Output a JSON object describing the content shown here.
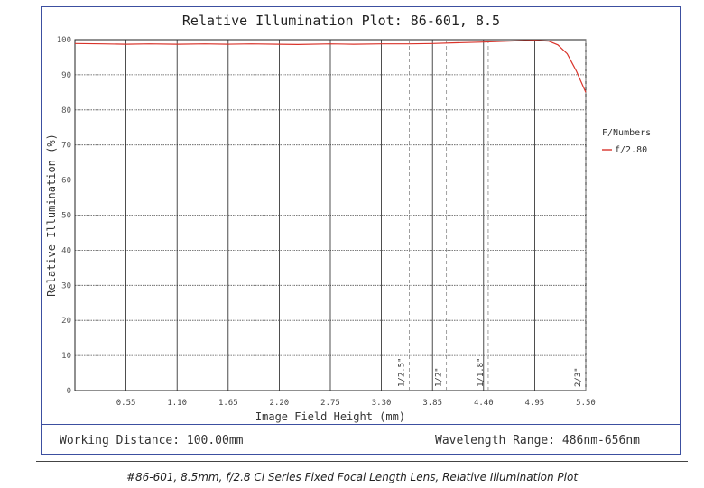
{
  "chart_data": {
    "type": "line",
    "title": "Relative Illumination Plot: 86-601, 8.5",
    "xlabel": "Image Field Height (mm)",
    "ylabel": "Relative Illumination (%)",
    "xlim": [
      0,
      5.5
    ],
    "ylim": [
      0,
      100
    ],
    "x_ticks": [
      "0.55",
      "1.10",
      "1.65",
      "2.20",
      "2.75",
      "3.30",
      "3.85",
      "4.40",
      "4.95",
      "5.50"
    ],
    "y_ticks": [
      "0",
      "10",
      "20",
      "30",
      "40",
      "50",
      "60",
      "70",
      "80",
      "90",
      "100"
    ],
    "grid": true,
    "legend": {
      "title": "F/Numbers",
      "placement": "right"
    },
    "series": [
      {
        "name": "f/2.80",
        "color": "#d9342b",
        "x": [
          0,
          0.3,
          0.55,
          0.8,
          1.1,
          1.4,
          1.65,
          1.9,
          2.2,
          2.4,
          2.75,
          3.0,
          3.3,
          3.6,
          3.85,
          4.1,
          4.4,
          4.6,
          4.8,
          4.95,
          5.1,
          5.2,
          5.3,
          5.4,
          5.5
        ],
        "y": [
          98.9,
          98.8,
          98.7,
          98.8,
          98.7,
          98.8,
          98.7,
          98.8,
          98.7,
          98.6,
          98.8,
          98.7,
          98.8,
          98.8,
          98.9,
          99.1,
          99.3,
          99.5,
          99.7,
          99.8,
          99.6,
          98.5,
          96.0,
          91.0,
          85.0
        ]
      }
    ],
    "sensor_markers": [
      {
        "label": "1/2.5\"",
        "x": 3.6
      },
      {
        "label": "1/2\"",
        "x": 4.0
      },
      {
        "label": "1/1.8\"",
        "x": 4.45
      },
      {
        "label": "2/3\"",
        "x": 5.5
      }
    ]
  },
  "footer": {
    "working_distance": "Working Distance: 100.00mm",
    "wavelength": "Wavelength Range: 486nm-656nm"
  },
  "caption": "#86-601, 8.5mm, f/2.8 Ci Series Fixed Focal Length Lens, Relative Illumination Plot"
}
